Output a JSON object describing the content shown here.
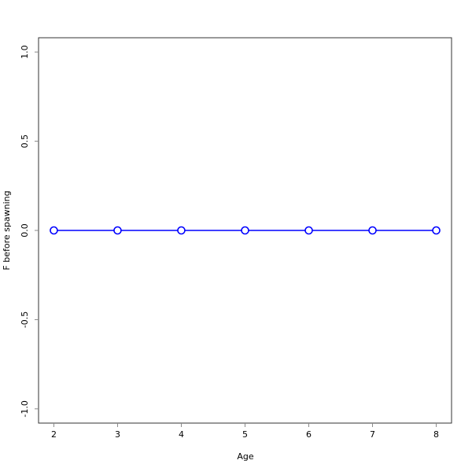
{
  "chart_data": {
    "type": "line",
    "title": "",
    "xlabel": "Age",
    "ylabel": "F before spawning",
    "x": [
      2,
      3,
      4,
      5,
      6,
      7,
      8
    ],
    "series": [
      {
        "values": [
          0,
          0,
          0,
          0,
          0,
          0,
          0
        ],
        "color": "#0000ff",
        "marker": "open-circle"
      }
    ],
    "xticks": [
      2,
      3,
      4,
      5,
      6,
      7,
      8
    ],
    "yticks": [
      "-1.0",
      "-0.5",
      "0.0",
      "0.5",
      "1.0"
    ],
    "xlim": [
      1.76,
      8.24
    ],
    "ylim": [
      -1.08,
      1.08
    ],
    "grid": false
  }
}
